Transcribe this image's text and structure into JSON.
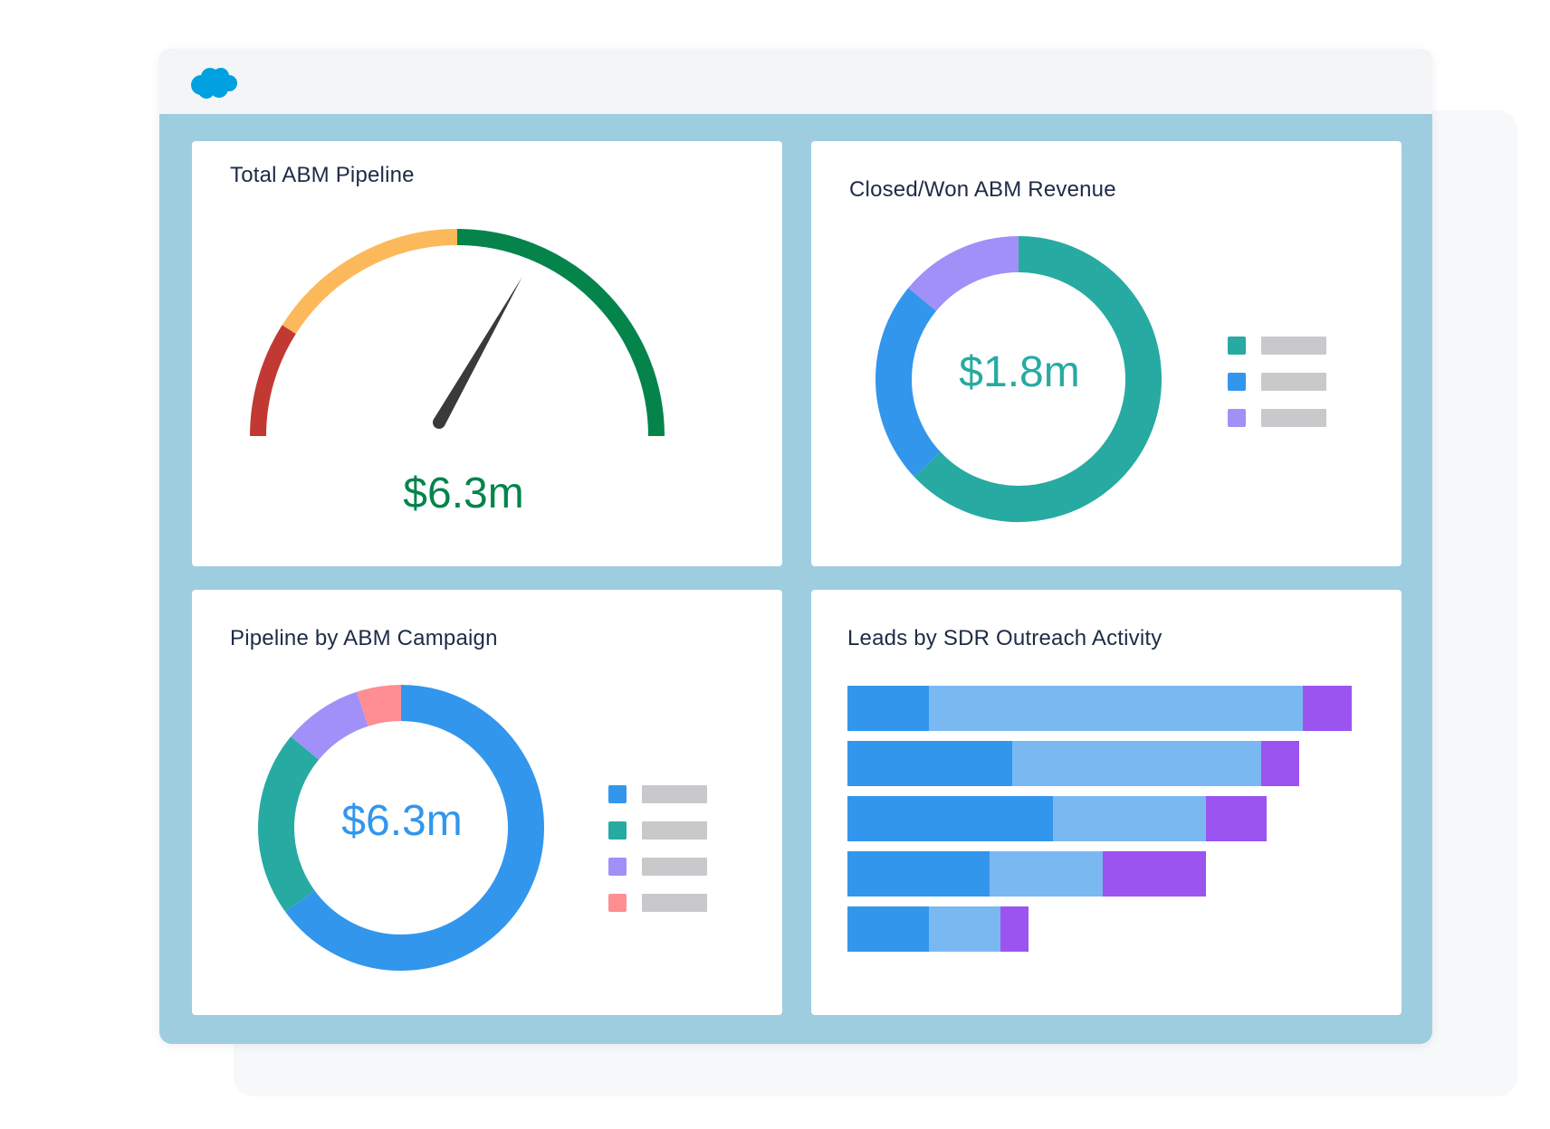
{
  "colors": {
    "dashboard_bg": "#9fcde0",
    "panel_bg": "#ffffff",
    "title_text": "#1e2b45",
    "legend_placeholder": "#c9c9cb",
    "gauge_red": "#c23934",
    "gauge_orange": "#fcb95b",
    "gauge_green": "#04844b",
    "needle": "#3a3a3a",
    "teal": "#27aaa2",
    "blue": "#3296ed",
    "light_blue": "#7ab8f1",
    "purple": "#a090f8",
    "violet": "#9b54ef",
    "pink": "#fe8e91"
  },
  "header": {
    "logo_icon": "salesforce-cloud-icon"
  },
  "panels": {
    "total_pipeline": {
      "title": "Total ABM Pipeline",
      "value": "$6.3m"
    },
    "closed_won": {
      "title": "Closed/Won ABM Revenue",
      "value": "$1.8m"
    },
    "pipeline_campaign": {
      "title": "Pipeline by ABM Campaign",
      "value": "$6.3m"
    },
    "leads_sdr": {
      "title": "Leads by SDR Outreach Activity"
    }
  },
  "chart_data": [
    {
      "type": "gauge",
      "title": "Total ABM Pipeline",
      "value_label": "$6.3m",
      "segments": [
        {
          "color": "#c23934",
          "start_fraction": 0.0,
          "end_fraction": 0.18
        },
        {
          "color": "#fcb95b",
          "start_fraction": 0.18,
          "end_fraction": 0.5
        },
        {
          "color": "#04844b",
          "start_fraction": 0.5,
          "end_fraction": 1.0
        }
      ],
      "needle_fraction": 0.665
    },
    {
      "type": "pie",
      "title": "Closed/Won ABM Revenue",
      "center_label": "$1.8m",
      "slices": [
        {
          "color": "#27aaa2",
          "value": 63
        },
        {
          "color": "#3296ed",
          "value": 23
        },
        {
          "color": "#a090f8",
          "value": 14
        }
      ],
      "legend_colors": [
        "#27aaa2",
        "#3296ed",
        "#a090f8"
      ]
    },
    {
      "type": "pie",
      "title": "Pipeline by ABM Campaign",
      "center_label": "$6.3m",
      "slices": [
        {
          "color": "#3296ed",
          "value": 65
        },
        {
          "color": "#27aaa2",
          "value": 21
        },
        {
          "color": "#a090f8",
          "value": 9
        },
        {
          "color": "#fe8e91",
          "value": 5
        }
      ],
      "legend_colors": [
        "#3296ed",
        "#27aaa2",
        "#a090f8",
        "#fe8e91"
      ]
    },
    {
      "type": "bar",
      "orientation": "horizontal",
      "stacked": true,
      "title": "Leads by SDR Outreach Activity",
      "series": [
        {
          "color": "#3296ed",
          "values": [
            90,
            182,
            227,
            157,
            90
          ]
        },
        {
          "color": "#7ab8f1",
          "values": [
            413,
            275,
            169,
            125,
            79
          ]
        },
        {
          "color": "#9b54ef",
          "values": [
            54,
            42,
            67,
            114,
            31
          ]
        }
      ],
      "xlim": [
        0,
        557
      ]
    }
  ]
}
